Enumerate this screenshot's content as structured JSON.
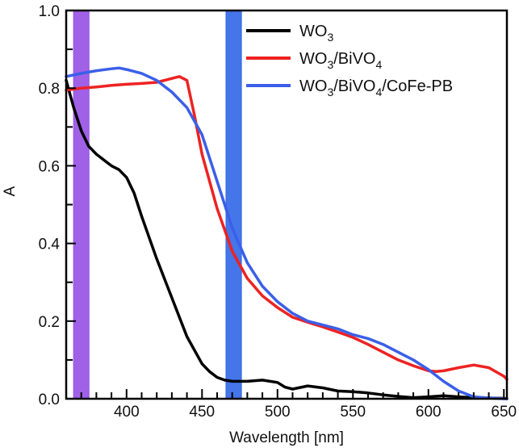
{
  "chart_data": {
    "type": "line",
    "xlabel": "Wavelength [nm]",
    "ylabel": "A",
    "xlim": [
      360,
      652
    ],
    "ylim": [
      0,
      1.0
    ],
    "xticks": [
      400,
      450,
      500,
      550,
      600,
      650
    ],
    "yticks": [
      0.0,
      0.2,
      0.4,
      0.6,
      0.8,
      1.0
    ],
    "ytick_labels": [
      "0.0",
      "0.2",
      "0.4",
      "0.6",
      "0.8",
      "1.0"
    ],
    "legend_position": "top-right",
    "bands": [
      {
        "x_from": 365,
        "x_to": 375,
        "color": "#9b59e6"
      },
      {
        "x_from": 466,
        "x_to": 476,
        "color": "#3a6ee8"
      }
    ],
    "series": [
      {
        "name": "WO3",
        "legend_base": "WO",
        "legend_parts": [
          [
            "WO",
            ""
          ],
          [
            "3",
            "sub"
          ]
        ],
        "color": "#000000",
        "x": [
          360,
          365,
          370,
          375,
          380,
          385,
          390,
          395,
          400,
          405,
          410,
          420,
          430,
          440,
          450,
          455,
          460,
          465,
          470,
          480,
          490,
          500,
          505,
          510,
          520,
          530,
          540,
          550,
          560,
          570,
          580,
          590,
          600,
          610,
          620,
          630,
          640,
          650,
          652
        ],
        "y": [
          0.82,
          0.75,
          0.69,
          0.65,
          0.63,
          0.615,
          0.6,
          0.59,
          0.57,
          0.53,
          0.47,
          0.36,
          0.26,
          0.16,
          0.09,
          0.07,
          0.055,
          0.048,
          0.045,
          0.045,
          0.048,
          0.042,
          0.03,
          0.025,
          0.033,
          0.028,
          0.02,
          0.018,
          0.015,
          0.01,
          0.006,
          0.003,
          0.005,
          0.008,
          0.005,
          0.003,
          0.002,
          0.001,
          0.0
        ]
      },
      {
        "name": "WO3/BiVO4",
        "legend_parts": [
          [
            "WO",
            ""
          ],
          [
            "3",
            "sub"
          ],
          [
            "/BiVO",
            ""
          ],
          [
            "4",
            "sub"
          ]
        ],
        "color": "#ee2222",
        "x": [
          360,
          370,
          380,
          390,
          400,
          410,
          420,
          430,
          435,
          440,
          445,
          450,
          460,
          470,
          480,
          490,
          500,
          510,
          520,
          530,
          540,
          550,
          560,
          570,
          580,
          590,
          600,
          605,
          610,
          620,
          630,
          640,
          650,
          652
        ],
        "y": [
          0.795,
          0.8,
          0.803,
          0.807,
          0.81,
          0.812,
          0.815,
          0.825,
          0.83,
          0.82,
          0.73,
          0.63,
          0.49,
          0.38,
          0.31,
          0.265,
          0.235,
          0.21,
          0.197,
          0.185,
          0.172,
          0.158,
          0.14,
          0.12,
          0.1,
          0.085,
          0.072,
          0.07,
          0.072,
          0.08,
          0.087,
          0.08,
          0.058,
          0.05
        ]
      },
      {
        "name": "WO3/BiVO4/CoFe-PB",
        "legend_parts": [
          [
            "WO",
            ""
          ],
          [
            "3",
            "sub"
          ],
          [
            "/BiVO",
            ""
          ],
          [
            "4",
            "sub"
          ],
          [
            "/CoFe-PB",
            ""
          ]
        ],
        "color": "#3b5fe8",
        "x": [
          360,
          370,
          380,
          390,
          395,
          400,
          410,
          420,
          430,
          440,
          450,
          460,
          470,
          480,
          490,
          500,
          510,
          520,
          530,
          540,
          550,
          560,
          570,
          580,
          590,
          600,
          610,
          620,
          630,
          640,
          650,
          652
        ],
        "y": [
          0.83,
          0.838,
          0.845,
          0.85,
          0.852,
          0.848,
          0.838,
          0.82,
          0.79,
          0.75,
          0.68,
          0.56,
          0.44,
          0.35,
          0.29,
          0.25,
          0.22,
          0.2,
          0.19,
          0.18,
          0.165,
          0.155,
          0.14,
          0.12,
          0.1,
          0.075,
          0.045,
          0.02,
          0.005,
          0.002,
          0.0,
          0.0
        ]
      }
    ]
  }
}
